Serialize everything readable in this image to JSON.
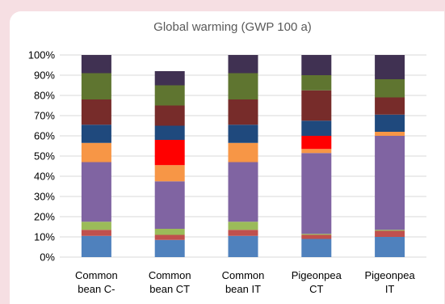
{
  "chart_data": {
    "type": "bar",
    "stacked": true,
    "title": "Global warming (GWP 100 a)",
    "xlabel": "",
    "ylabel": "",
    "ylim": [
      0,
      100
    ],
    "y_ticks": [
      "0%",
      "10%",
      "20%",
      "30%",
      "40%",
      "50%",
      "60%",
      "70%",
      "80%",
      "90%",
      "100%"
    ],
    "grid": true,
    "legend": "none",
    "categories": [
      [
        "Common",
        "bean C-"
      ],
      [
        "Common",
        "bean CT"
      ],
      [
        "Common",
        "bean IT"
      ],
      [
        "Pigeonpea",
        "CT"
      ],
      [
        "Pigeonpea",
        "IT"
      ]
    ],
    "series": [
      {
        "color": "#4f81bd",
        "values": [
          10.5,
          8.5,
          10.5,
          9,
          10
        ]
      },
      {
        "color": "#c0504d",
        "values": [
          3,
          2.5,
          3,
          2,
          3
        ]
      },
      {
        "color": "#9bbb59",
        "values": [
          4,
          3,
          4,
          0.5,
          0.5
        ]
      },
      {
        "color": "#8064a2",
        "values": [
          29.5,
          23.5,
          29.5,
          40,
          46.5
        ]
      },
      {
        "color": "#f79646",
        "values": [
          9.5,
          8,
          9.5,
          2,
          2
        ]
      },
      {
        "color": "#ff0000",
        "values": [
          0,
          12.5,
          0,
          6.5,
          0
        ]
      },
      {
        "color": "#1f497d",
        "values": [
          9,
          7,
          9,
          7.5,
          8.5
        ]
      },
      {
        "color": "#772c2a",
        "values": [
          12.5,
          10,
          12.5,
          15,
          8.5
        ]
      },
      {
        "color": "#5f7530",
        "values": [
          13,
          10,
          13,
          7.5,
          9
        ]
      },
      {
        "color": "#403152",
        "values": [
          9,
          7,
          9,
          10,
          12
        ]
      }
    ]
  }
}
